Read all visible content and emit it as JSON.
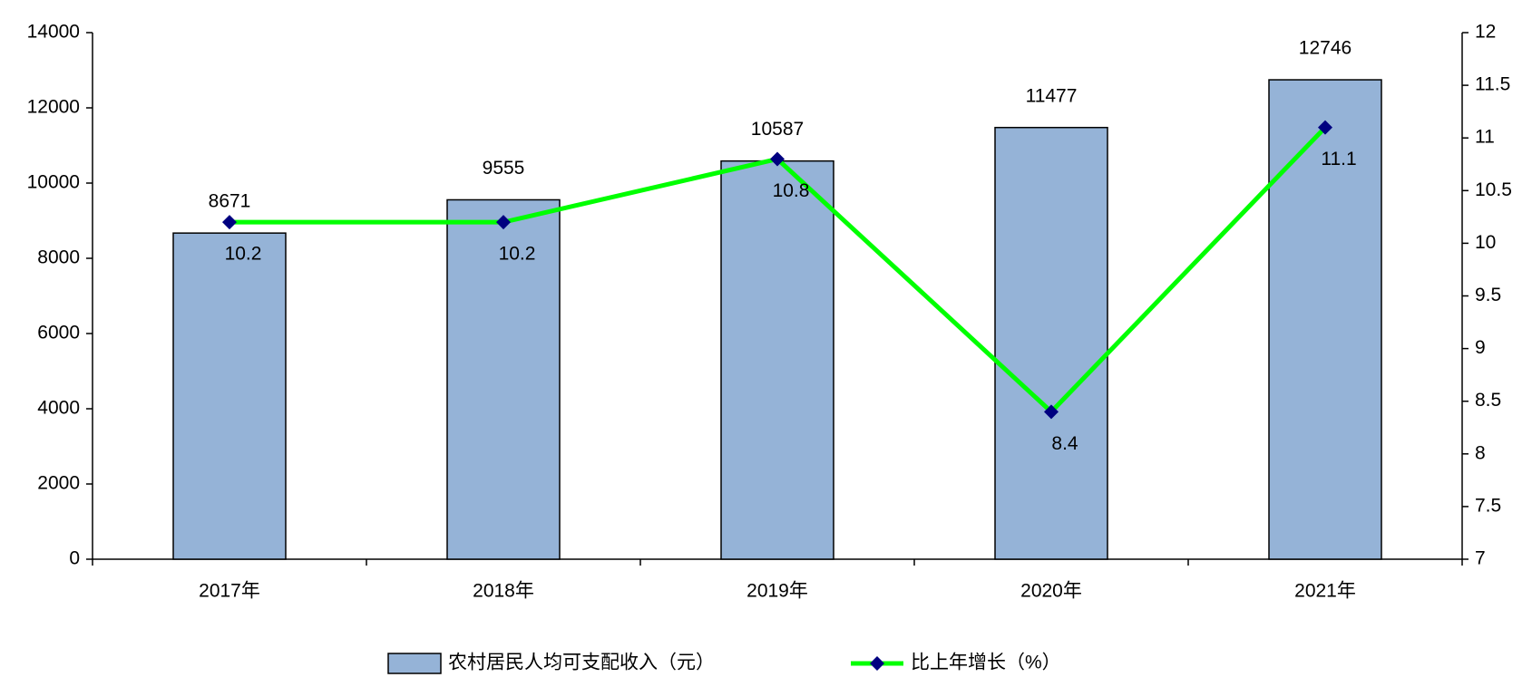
{
  "chart_data": {
    "type": "bar",
    "categories": [
      "2017年",
      "2018年",
      "2019年",
      "2020年",
      "2021年"
    ],
    "series": [
      {
        "name": "农村居民人均可支配收入（元）",
        "type": "bar",
        "color": "#95b3d7",
        "values": [
          8671,
          9555,
          10587,
          11477,
          12746
        ]
      },
      {
        "name": "比上年增长（%）",
        "type": "line",
        "axis": "y2",
        "color": "#00ff00",
        "marker_color": "#000080",
        "values": [
          10.2,
          10.2,
          10.8,
          8.4,
          11.1
        ]
      }
    ],
    "ylim": [
      0,
      14000
    ],
    "yticks": [
      0,
      2000,
      4000,
      6000,
      8000,
      10000,
      12000,
      14000
    ],
    "y2lim": [
      7,
      12
    ],
    "y2ticks": [
      7,
      7.5,
      8,
      8.5,
      9,
      9.5,
      10,
      10.5,
      11,
      11.5,
      12
    ],
    "grid": false,
    "legend": "bottom"
  }
}
